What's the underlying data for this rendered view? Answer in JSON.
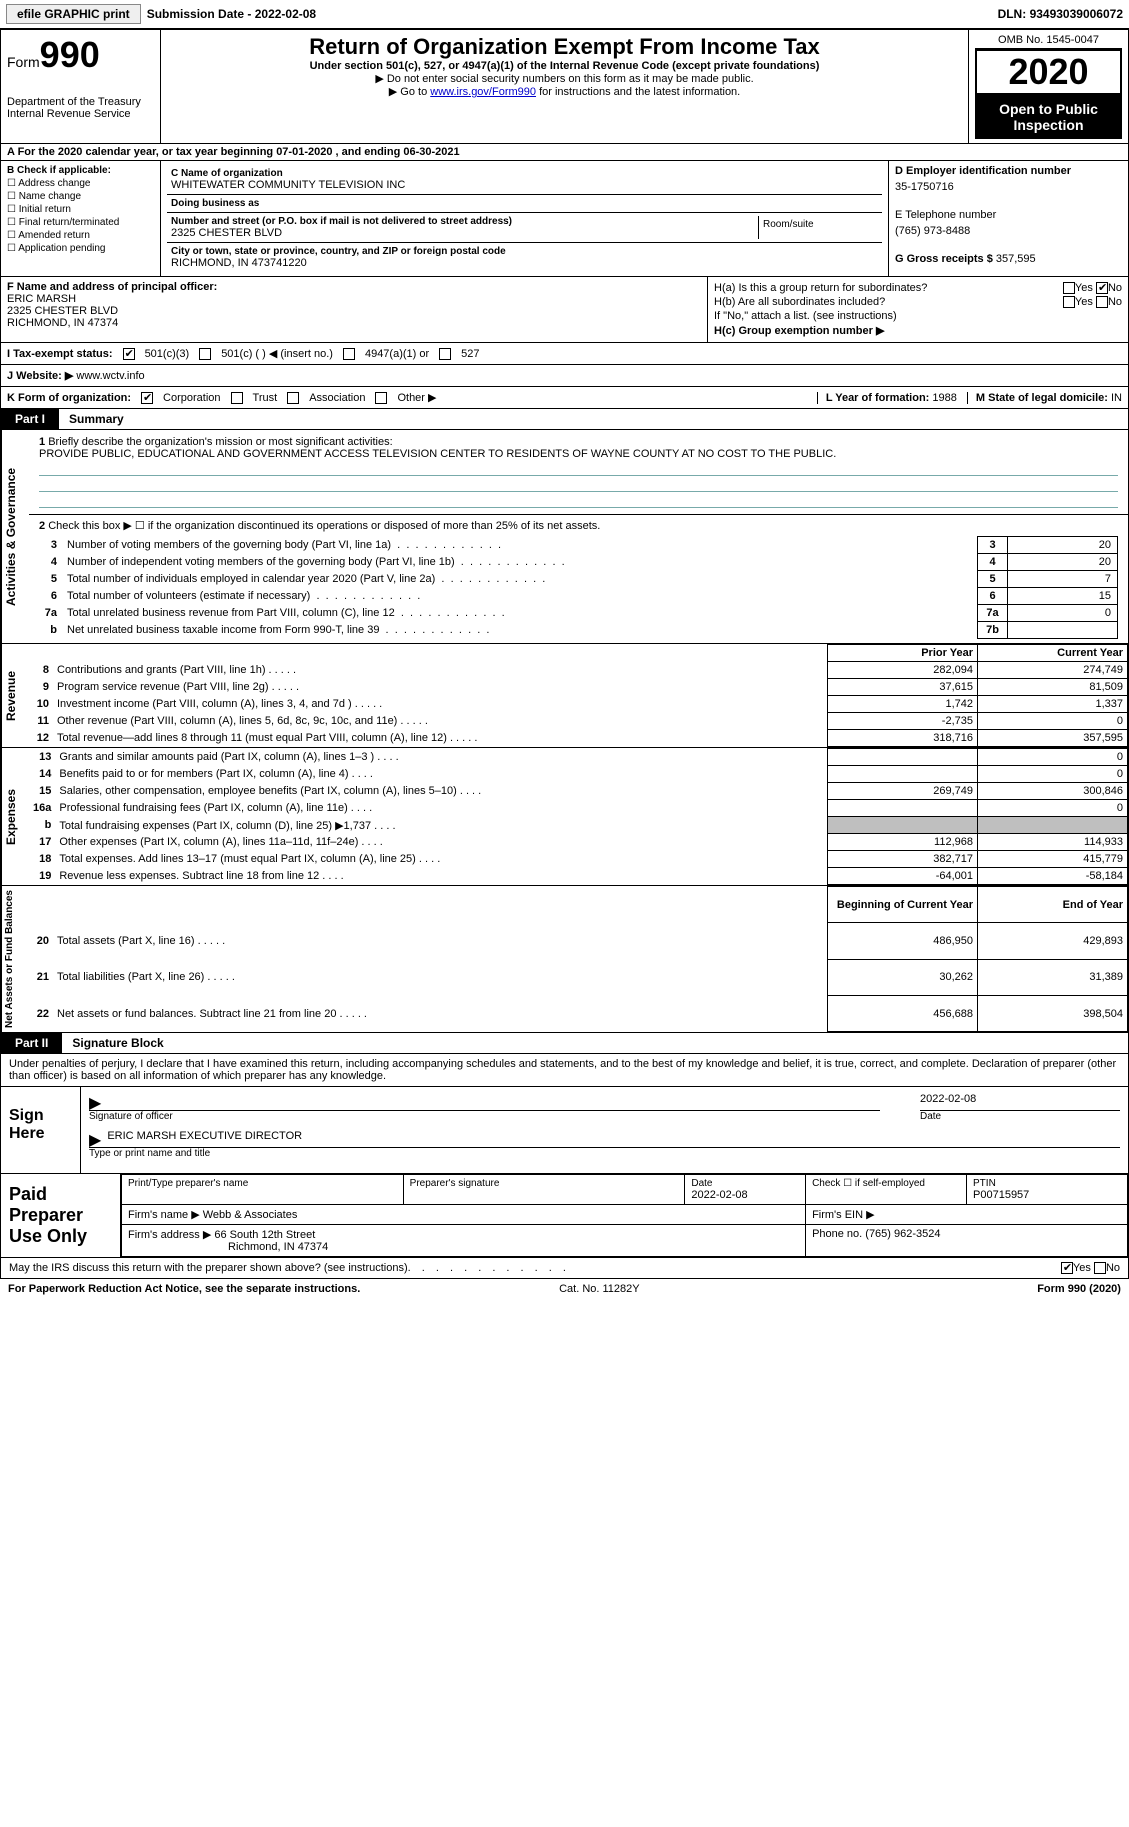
{
  "topbar": {
    "efile": "efile GRAPHIC print",
    "sub_label": "Submission Date - ",
    "sub_date": "2022-02-08",
    "dln_label": "DLN: ",
    "dln": "93493039006072"
  },
  "header": {
    "form_label": "Form",
    "form_no": "990",
    "dept": "Department of the Treasury\nInternal Revenue Service",
    "title": "Return of Organization Exempt From Income Tax",
    "sub": "Under section 501(c), 527, or 4947(a)(1) of the Internal Revenue Code (except private foundations)",
    "line1": "▶ Do not enter social security numbers on this form as it may be made public.",
    "line2_pre": "▶ Go to ",
    "line2_link": "www.irs.gov/Form990",
    "line2_post": " for instructions and the latest information.",
    "omb": "OMB No. 1545-0047",
    "year": "2020",
    "otpi": "Open to Public Inspection"
  },
  "row_a": "A For the 2020 calendar year, or tax year beginning 07-01-2020   , and ending 06-30-2021",
  "block_b": {
    "title": "B Check if applicable:",
    "items": [
      "Address change",
      "Name change",
      "Initial return",
      "Final return/terminated",
      "Amended return",
      "Application pending"
    ]
  },
  "block_c": {
    "name_lbl": "C Name of organization",
    "name": "WHITEWATER COMMUNITY TELEVISION INC",
    "dba_lbl": "Doing business as",
    "dba": "",
    "addr_lbl": "Number and street (or P.O. box if mail is not delivered to street address)",
    "room_lbl": "Room/suite",
    "addr": "2325 CHESTER BLVD",
    "city_lbl": "City or town, state or province, country, and ZIP or foreign postal code",
    "city": "RICHMOND, IN  473741220"
  },
  "block_d": {
    "ein_lbl": "D Employer identification number",
    "ein": "35-1750716",
    "tel_lbl": "E Telephone number",
    "tel": "(765) 973-8488",
    "gross_lbl": "G Gross receipts $",
    "gross": "357,595"
  },
  "block_f": {
    "lbl": "F Name and address of principal officer:",
    "name": "ERIC MARSH",
    "addr1": "2325 CHESTER BLVD",
    "addr2": "RICHMOND, IN  47374"
  },
  "block_h": {
    "a_lbl": "H(a)  Is this a group return for subordinates?",
    "b_lbl": "H(b)  Are all subordinates included?",
    "note": "If \"No,\" attach a list. (see instructions)",
    "c_lbl": "H(c)  Group exemption number ▶",
    "yes": "Yes",
    "no": "No"
  },
  "tax_status": {
    "lbl": "I   Tax-exempt status:",
    "opt1": "501(c)(3)",
    "opt2": "501(c) (  ) ◀ (insert no.)",
    "opt3": "4947(a)(1) or",
    "opt4": "527"
  },
  "website": {
    "lbl": "J   Website: ▶",
    "val": "www.wctv.info"
  },
  "kline": {
    "lbl": "K Form of organization:",
    "corp": "Corporation",
    "trust": "Trust",
    "assoc": "Association",
    "other": "Other ▶",
    "yof_lbl": "L Year of formation:",
    "yof": "1988",
    "dom_lbl": "M State of legal domicile:",
    "dom": "IN"
  },
  "part1": {
    "pill": "Part I",
    "title": "Summary"
  },
  "summary": {
    "vlabel": "Activities & Governance",
    "q1": "Briefly describe the organization's mission or most significant activities:",
    "mission": "PROVIDE PUBLIC, EDUCATIONAL AND GOVERNMENT ACCESS TELEVISION CENTER TO RESIDENTS OF WAYNE COUNTY AT NO COST TO THE PUBLIC.",
    "q2": "Check this box ▶ ☐  if the organization discontinued its operations or disposed of more than 25% of its net assets.",
    "rows": [
      {
        "n": "3",
        "t": "Number of voting members of the governing body (Part VI, line 1a)",
        "b": "3",
        "v": "20"
      },
      {
        "n": "4",
        "t": "Number of independent voting members of the governing body (Part VI, line 1b)",
        "b": "4",
        "v": "20"
      },
      {
        "n": "5",
        "t": "Total number of individuals employed in calendar year 2020 (Part V, line 2a)",
        "b": "5",
        "v": "7"
      },
      {
        "n": "6",
        "t": "Total number of volunteers (estimate if necessary)",
        "b": "6",
        "v": "15"
      },
      {
        "n": "7a",
        "t": "Total unrelated business revenue from Part VIII, column (C), line 12",
        "b": "7a",
        "v": "0"
      },
      {
        "n": "b",
        "t": "Net unrelated business taxable income from Form 990-T, line 39",
        "b": "7b",
        "v": ""
      }
    ]
  },
  "revenue": {
    "vlabel": "Revenue",
    "hdr_prior": "Prior Year",
    "hdr_curr": "Current Year",
    "rows": [
      {
        "n": "8",
        "t": "Contributions and grants (Part VIII, line 1h)",
        "p": "282,094",
        "c": "274,749"
      },
      {
        "n": "9",
        "t": "Program service revenue (Part VIII, line 2g)",
        "p": "37,615",
        "c": "81,509"
      },
      {
        "n": "10",
        "t": "Investment income (Part VIII, column (A), lines 3, 4, and 7d )",
        "p": "1,742",
        "c": "1,337"
      },
      {
        "n": "11",
        "t": "Other revenue (Part VIII, column (A), lines 5, 6d, 8c, 9c, 10c, and 11e)",
        "p": "-2,735",
        "c": "0"
      },
      {
        "n": "12",
        "t": "Total revenue—add lines 8 through 11 (must equal Part VIII, column (A), line 12)",
        "p": "318,716",
        "c": "357,595"
      }
    ]
  },
  "expenses": {
    "vlabel": "Expenses",
    "rows": [
      {
        "n": "13",
        "t": "Grants and similar amounts paid (Part IX, column (A), lines 1–3 )",
        "p": "",
        "c": "0"
      },
      {
        "n": "14",
        "t": "Benefits paid to or for members (Part IX, column (A), line 4)",
        "p": "",
        "c": "0"
      },
      {
        "n": "15",
        "t": "Salaries, other compensation, employee benefits (Part IX, column (A), lines 5–10)",
        "p": "269,749",
        "c": "300,846"
      },
      {
        "n": "16a",
        "t": "Professional fundraising fees (Part IX, column (A), line 11e)",
        "p": "",
        "c": "0"
      },
      {
        "n": "b",
        "t": "Total fundraising expenses (Part IX, column (D), line 25) ▶1,737",
        "p": "shade",
        "c": "shade"
      },
      {
        "n": "17",
        "t": "Other expenses (Part IX, column (A), lines 11a–11d, 11f–24e)",
        "p": "112,968",
        "c": "114,933"
      },
      {
        "n": "18",
        "t": "Total expenses. Add lines 13–17 (must equal Part IX, column (A), line 25)",
        "p": "382,717",
        "c": "415,779"
      },
      {
        "n": "19",
        "t": "Revenue less expenses. Subtract line 18 from line 12",
        "p": "-64,001",
        "c": "-58,184"
      }
    ]
  },
  "netassets": {
    "vlabel": "Net Assets or Fund Balances",
    "hdr_beg": "Beginning of Current Year",
    "hdr_end": "End of Year",
    "rows": [
      {
        "n": "20",
        "t": "Total assets (Part X, line 16)",
        "p": "486,950",
        "c": "429,893"
      },
      {
        "n": "21",
        "t": "Total liabilities (Part X, line 26)",
        "p": "30,262",
        "c": "31,389"
      },
      {
        "n": "22",
        "t": "Net assets or fund balances. Subtract line 21 from line 20",
        "p": "456,688",
        "c": "398,504"
      }
    ]
  },
  "part2": {
    "pill": "Part II",
    "title": "Signature Block"
  },
  "sigtext": "Under penalties of perjury, I declare that I have examined this return, including accompanying schedules and statements, and to the best of my knowledge and belief, it is true, correct, and complete. Declaration of preparer (other than officer) is based on all information of which preparer has any knowledge.",
  "sign": {
    "left": "Sign Here",
    "sig_lbl": "Signature of officer",
    "date_lbl": "Date",
    "date": "2022-02-08",
    "name": "ERIC MARSH  EXECUTIVE DIRECTOR",
    "name_lbl": "Type or print name and title"
  },
  "prep": {
    "left": "Paid Preparer Use Only",
    "r1": {
      "c1_lbl": "Print/Type preparer's name",
      "c2_lbl": "Preparer's signature",
      "c3_lbl": "Date",
      "c3": "2022-02-08",
      "c4_lbl": "Check ☐ if self-employed",
      "c5_lbl": "PTIN",
      "c5": "P00715957"
    },
    "r2": {
      "lbl": "Firm's name    ▶",
      "val": "Webb & Associates",
      "ein_lbl": "Firm's EIN ▶"
    },
    "r3": {
      "lbl": "Firm's address ▶",
      "val": "66 South 12th Street",
      "val2": "Richmond, IN  47374",
      "ph_lbl": "Phone no.",
      "ph": "(765) 962-3524"
    }
  },
  "discuss": {
    "t": "May the IRS discuss this return with the preparer shown above? (see instructions)",
    "yes": "Yes",
    "no": "No"
  },
  "foot": {
    "l": "For Paperwork Reduction Act Notice, see the separate instructions.",
    "m": "Cat. No. 11282Y",
    "r": "Form 990 (2020)"
  }
}
